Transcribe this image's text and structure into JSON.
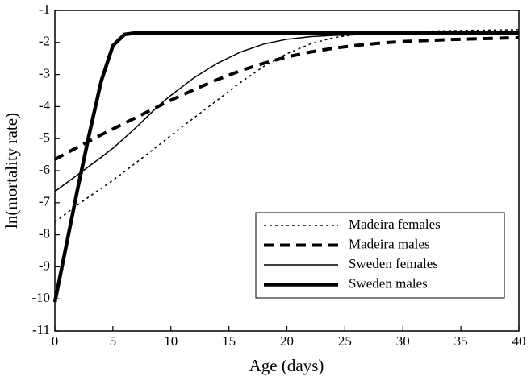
{
  "chart_data": {
    "type": "line",
    "xlabel": "Age (days)",
    "ylabel": "ln(mortality rate)",
    "x": [
      0,
      1,
      2,
      3,
      4,
      5,
      6,
      7,
      8,
      9,
      10,
      12,
      14,
      16,
      18,
      20,
      22,
      24,
      26,
      28,
      30,
      32,
      34,
      36,
      38,
      40
    ],
    "series": [
      {
        "name": "Madeira females",
        "color": "#000000",
        "width": 1.5,
        "dash": "3,4",
        "values": [
          -7.6,
          -7.33,
          -7.06,
          -6.8,
          -6.55,
          -6.3,
          -6.03,
          -5.75,
          -5.47,
          -5.19,
          -4.9,
          -4.35,
          -3.8,
          -3.25,
          -2.75,
          -2.35,
          -2.05,
          -1.85,
          -1.75,
          -1.7,
          -1.67,
          -1.65,
          -1.63,
          -1.62,
          -1.61,
          -1.6
        ]
      },
      {
        "name": "Madeira males",
        "color": "#000000",
        "width": 4,
        "dash": "12,8",
        "values": [
          -5.65,
          -5.45,
          -5.26,
          -5.07,
          -4.88,
          -4.7,
          -4.52,
          -4.34,
          -4.16,
          -3.98,
          -3.8,
          -3.47,
          -3.16,
          -2.88,
          -2.65,
          -2.45,
          -2.3,
          -2.18,
          -2.09,
          -2.02,
          -1.97,
          -1.94,
          -1.91,
          -1.89,
          -1.87,
          -1.85
        ]
      },
      {
        "name": "Sweden females",
        "color": "#000000",
        "width": 1.5,
        "dash": "none",
        "values": [
          -6.65,
          -6.38,
          -6.12,
          -5.85,
          -5.58,
          -5.3,
          -4.98,
          -4.65,
          -4.3,
          -3.95,
          -3.65,
          -3.1,
          -2.65,
          -2.3,
          -2.05,
          -1.9,
          -1.82,
          -1.78,
          -1.76,
          -1.75,
          -1.75,
          -1.75,
          -1.75,
          -1.75,
          -1.75,
          -1.75
        ]
      },
      {
        "name": "Sweden males",
        "color": "#000000",
        "width": 4.5,
        "dash": "none",
        "values": [
          -10.1,
          -8.3,
          -6.5,
          -4.8,
          -3.2,
          -2.1,
          -1.75,
          -1.7,
          -1.7,
          -1.7,
          -1.7,
          -1.7,
          -1.7,
          -1.7,
          -1.7,
          -1.7,
          -1.7,
          -1.7,
          -1.7,
          -1.7,
          -1.7,
          -1.7,
          -1.7,
          -1.7,
          -1.7,
          -1.7
        ]
      }
    ],
    "xlim": [
      0,
      40
    ],
    "xticks": [
      0,
      5,
      10,
      15,
      20,
      25,
      30,
      35,
      40
    ],
    "ylim": [
      -11,
      -1
    ],
    "yticks": [
      -11,
      -10,
      -9,
      -8,
      -7,
      -6,
      -5,
      -4,
      -3,
      -2,
      -1
    ],
    "legend": "lower right",
    "grid": false
  }
}
